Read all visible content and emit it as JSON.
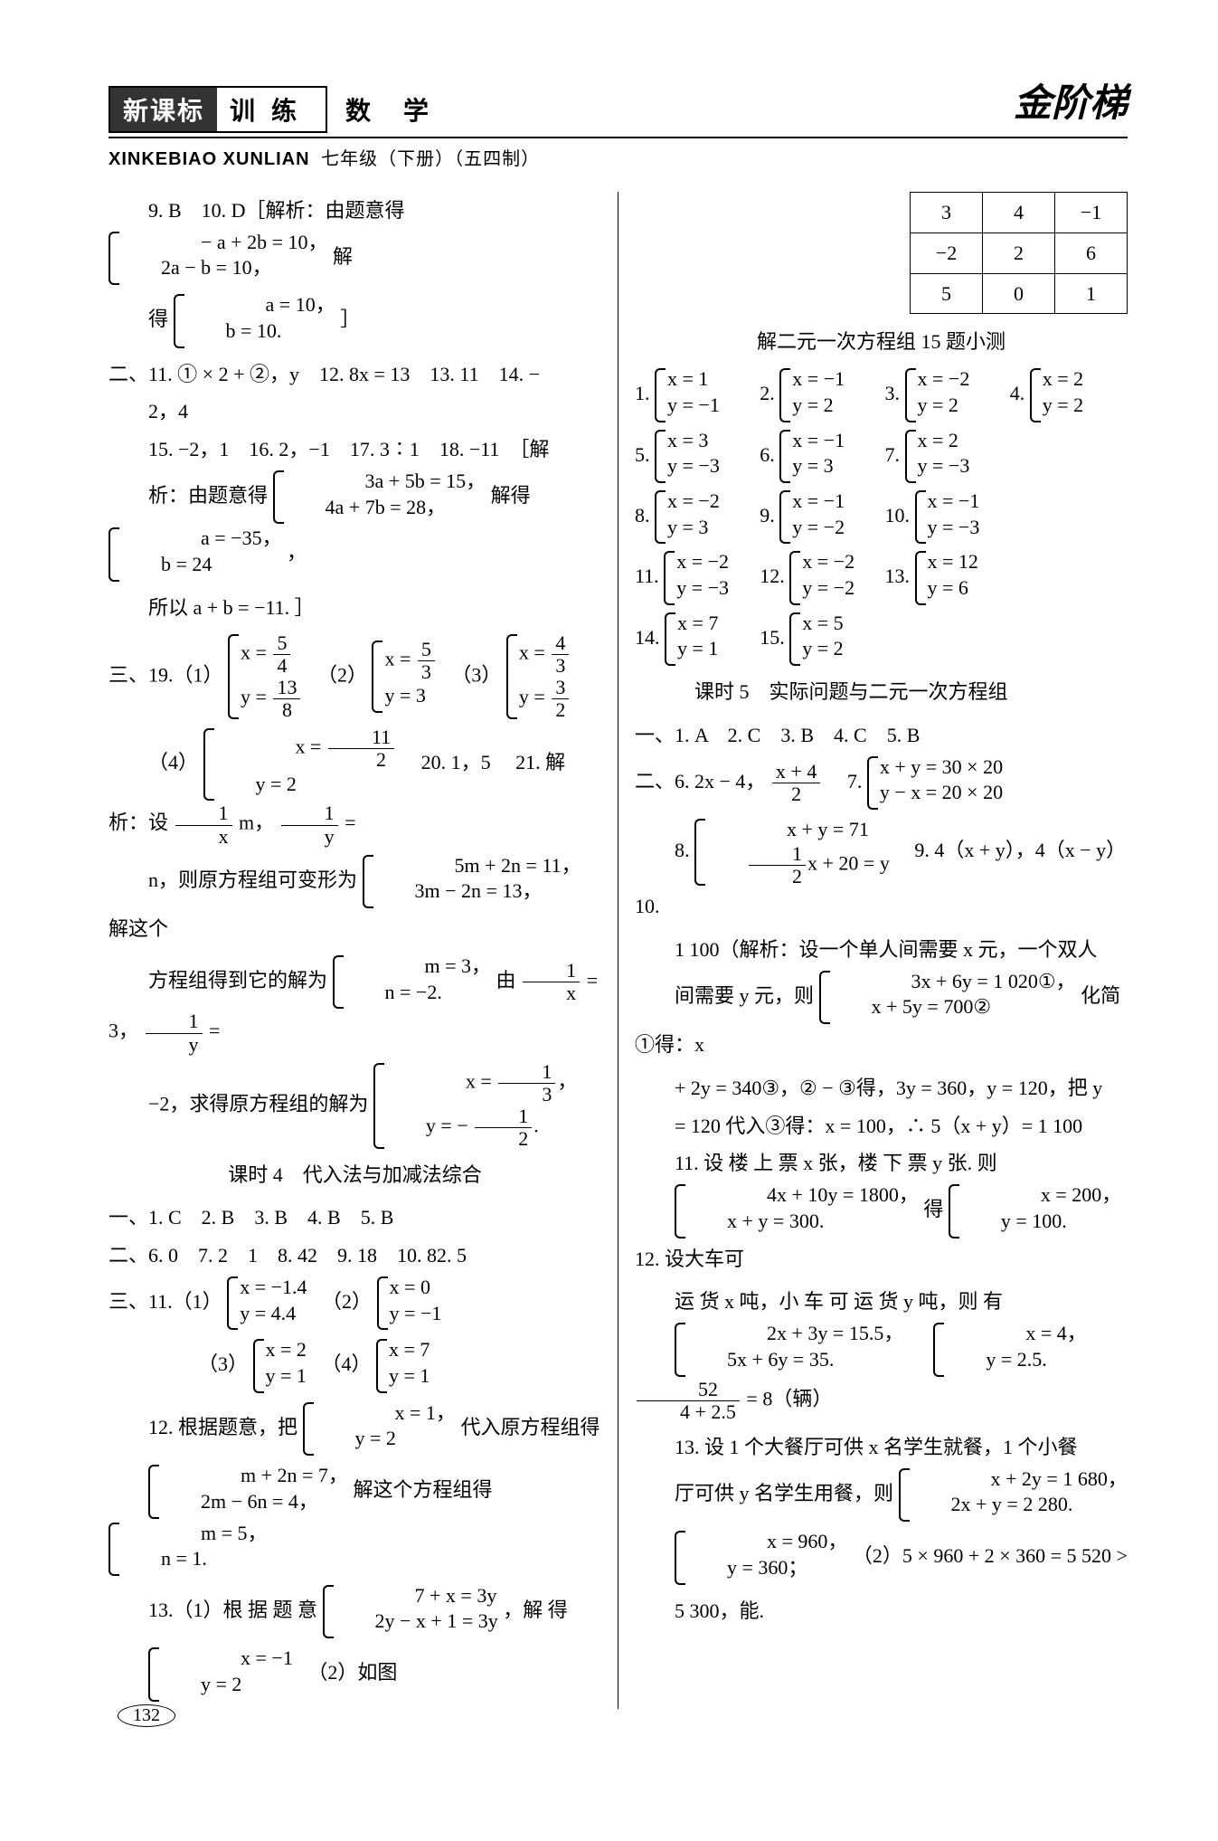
{
  "header": {
    "title_dark": "新课标",
    "title_light": "训练",
    "subject": "数学",
    "brand": "金阶梯",
    "pinyin": "XINKEBIAO XUNLIAN",
    "grade": "七年级（下册）（五四制）"
  },
  "left": {
    "q9_10": "9. B　10. D［解析：由题意得",
    "eq1_a": "− a + 2b = 10，",
    "eq1_b": "2a − b = 10，",
    "eq1_c": "解",
    "eq2_pre": "得",
    "eq2_a": "a = 10，",
    "eq2_b": "b = 10.",
    "eq2_post": "］",
    "sec2": "二、11. ① × 2 + ②，y　12. 8x = 13　13. 11　14. −",
    "sec2b": "2，4",
    "sec2c": "15. −2，1　16. 2，−1　17. 3∶1　18. −11　［解",
    "sec2d_pre": "析：由题意得",
    "sec2d_a": "3a + 5b = 15，",
    "sec2d_b": "4a + 7b = 28，",
    "sec2d_mid": "解得",
    "sec2d_c": "a = −35，",
    "sec2d_d": "b = 24",
    "sec2d_post": "，",
    "sec2e": "所以 a + b = −11. ］",
    "sec3_pre": "三、19.（1）",
    "s19_1a_num": "5",
    "s19_1a_den": "4",
    "s19_1b_num": "13",
    "s19_1b_den": "8",
    "s19_2a_num": "5",
    "s19_2a_den": "3",
    "s19_2b": "y = 3",
    "s19_3a_num": "4",
    "s19_3a_den": "3",
    "s19_3b_num": "3",
    "s19_3b_den": "2",
    "s19_4_pre": "（4）",
    "s19_4a_num": "11",
    "s19_4a_den": "2",
    "s19_4b": "y = 2",
    "s20": "20. 1，5",
    "s21_pre": "21.  解析：设",
    "s21_a_num": "1",
    "s21_a_den": "x",
    "s21_mid": "m，",
    "s21_b_num": "1",
    "s21_b_den": "y",
    "s21_post": " =",
    "s21_line2_pre": "n，则原方程组可变形为",
    "s21_line2_a": "5m + 2n = 11，",
    "s21_line2_b": "3m − 2n = 13，",
    "s21_line2_post": "解这个",
    "s21_line3_pre": "方程组得到它的解为",
    "s21_line3_a": "m = 3，",
    "s21_line3_b": "n = −2.",
    "s21_line3_mid": "由",
    "s21_line3_post": " =",
    "s21_line4_pre": "−2，求得原方程组的解为",
    "s21_line4_a_pre": "x = ",
    "s21_line4_a_num": "1",
    "s21_line4_a_den": "3",
    "s21_line4_a_post": "，",
    "s21_line4_b_pre": "y = − ",
    "s21_line4_b_num": "1",
    "s21_line4_b_den": "2",
    "s21_line4_b_post": ".",
    "lesson4_title": "课时 4　代入法与加减法综合",
    "l4_sec1": "一、1. C　2. B　3. B　4. B　5. B",
    "l4_sec2": "二、6. 0　7. 2　1　8. 42　9. 18　10. 82. 5",
    "l4_sec3_pre": "三、11.（1）",
    "l4_11_1a": "x = −1.4",
    "l4_11_1b": "y = 4.4",
    "l4_11_2_pre": "（2）",
    "l4_11_2a": "x = 0",
    "l4_11_2b": "y = −1",
    "l4_11_3_pre": "（3）",
    "l4_11_3a": "x = 2",
    "l4_11_3b": "y = 1",
    "l4_11_4_pre": "（4）",
    "l4_11_4a": "x = 7",
    "l4_11_4b": "y = 1",
    "l4_12_pre": "12. 根据题意，把",
    "l4_12_a": "x = 1，",
    "l4_12_b": "y = 2",
    "l4_12_post": "代入原方程组得",
    "l4_12b_a": "m + 2n = 7，",
    "l4_12b_b": "2m − 6n = 4，",
    "l4_12b_mid": "解这个方程组得",
    "l4_12b_c": "m = 5，",
    "l4_12b_d": "n = 1.",
    "l4_13_pre": "13.（1）根 据 题 意",
    "l4_13_a": "7 + x = 3y",
    "l4_13_b": "2y − x + 1 = 3y",
    "l4_13_post": "，解 得",
    "l4_13b_a": "x = −1",
    "l4_13b_b": "y = 2",
    "l4_13b_post": "（2）如图"
  },
  "right": {
    "table": [
      [
        "3",
        "4",
        "−1"
      ],
      [
        "−2",
        "2",
        "6"
      ],
      [
        "5",
        "0",
        "1"
      ]
    ],
    "quiz_title": "解二元一次方程组 15 题小测",
    "answers": [
      {
        "n": "1.",
        "a": "x = 1",
        "b": "y = −1"
      },
      {
        "n": "2.",
        "a": "x = −1",
        "b": "y = 2"
      },
      {
        "n": "3.",
        "a": "x = −2",
        "b": "y = 2"
      },
      {
        "n": "4.",
        "a": "x = 2",
        "b": "y = 2"
      },
      {
        "n": "5.",
        "a": "x = 3",
        "b": "y = −3"
      },
      {
        "n": "6.",
        "a": "x = −1",
        "b": "y = 3"
      },
      {
        "n": "7.",
        "a": "x = 2",
        "b": "y = −3"
      },
      {
        "n": "",
        "a": "",
        "b": ""
      },
      {
        "n": "8.",
        "a": "x = −2",
        "b": "y = 3"
      },
      {
        "n": "9.",
        "a": "x = −1",
        "b": "y = −2"
      },
      {
        "n": "10.",
        "a": "x = −1",
        "b": "y = −3"
      },
      {
        "n": "",
        "a": "",
        "b": ""
      },
      {
        "n": "11.",
        "a": "x = −2",
        "b": "y = −3"
      },
      {
        "n": "12.",
        "a": "x = −2",
        "b": "y = −2"
      },
      {
        "n": "13.",
        "a": "x = 12",
        "b": "y = 6"
      },
      {
        "n": "",
        "a": "",
        "b": ""
      },
      {
        "n": "14.",
        "a": "x = 7",
        "b": "y = 1"
      },
      {
        "n": "15.",
        "a": "x = 5",
        "b": "y = 2"
      },
      {
        "n": "",
        "a": "",
        "b": ""
      },
      {
        "n": "",
        "a": "",
        "b": ""
      }
    ],
    "lesson5_title": "课时 5　实际问题与二元一次方程组",
    "l5_sec1": "一、1. A　2. C　3. B　4. C　5. B",
    "l5_sec2_pre": "二、6. 2x − 4，",
    "l5_sec2_num": "x + 4",
    "l5_sec2_den": "2",
    "l5_sec2_mid": "　7.",
    "l5_7a": "x + y = 30 × 20",
    "l5_7b": "y − x = 20 × 20",
    "l5_8_pre": "8.",
    "l5_8a": "x + y = 71",
    "l5_8b_num": "1",
    "l5_8b_den": "2",
    "l5_8b_post": "x + 20 = y",
    "l5_9": "9. 4（x + y），4（x − y）　10.",
    "l5_10a": "1 100（解析：设一个单人间需要 x 元，一个双人",
    "l5_10b_pre": "间需要 y 元，则",
    "l5_10b_a": "3x + 6y = 1 020①，",
    "l5_10b_b": "x + 5y = 700②",
    "l5_10b_post": "化简①得：x",
    "l5_10c": " + 2y = 340③，② − ③得，3y = 360，y = 120，把 y",
    "l5_10d": " = 120 代入③得：x = 100，∴ 5（x + y）= 1 100",
    "l5_11a": "11.  设 楼 上 票 x 张，楼 下 票 y 张.  则",
    "l5_11b_a": "4x + 10y = 1800，",
    "l5_11b_b": "x + y = 300.",
    "l5_11b_mid": "得",
    "l5_11b_c": "x = 200，",
    "l5_11b_d": "y = 100.",
    "l5_12_pre": "12.  设大车可",
    "l5_12a": "运 货 x 吨，小 车 可 运 货 y 吨，则 有",
    "l5_12b_a": "2x + 3y = 15.5，",
    "l5_12b_b": "5x + 6y = 35.",
    "l5_12b_c": "x = 4，",
    "l5_12b_d": "y = 2.5.",
    "l5_12c_num": "52",
    "l5_12c_den": "4 + 2.5",
    "l5_12c_post": " = 8（辆）",
    "l5_13a": "13. 设 1 个大餐厅可供 x 名学生就餐，1 个小餐",
    "l5_13b_pre": "厅可供 y 名学生用餐，则",
    "l5_13b_a": "x + 2y = 1 680，",
    "l5_13b_b": "2x + y = 2 280.",
    "l5_13c_a": "x = 960，",
    "l5_13c_b": "y = 360；",
    "l5_13c_post": "（2）5 × 960 + 2 × 360 = 5 520 >",
    "l5_13d": "5 300，能."
  },
  "page_number": "132"
}
